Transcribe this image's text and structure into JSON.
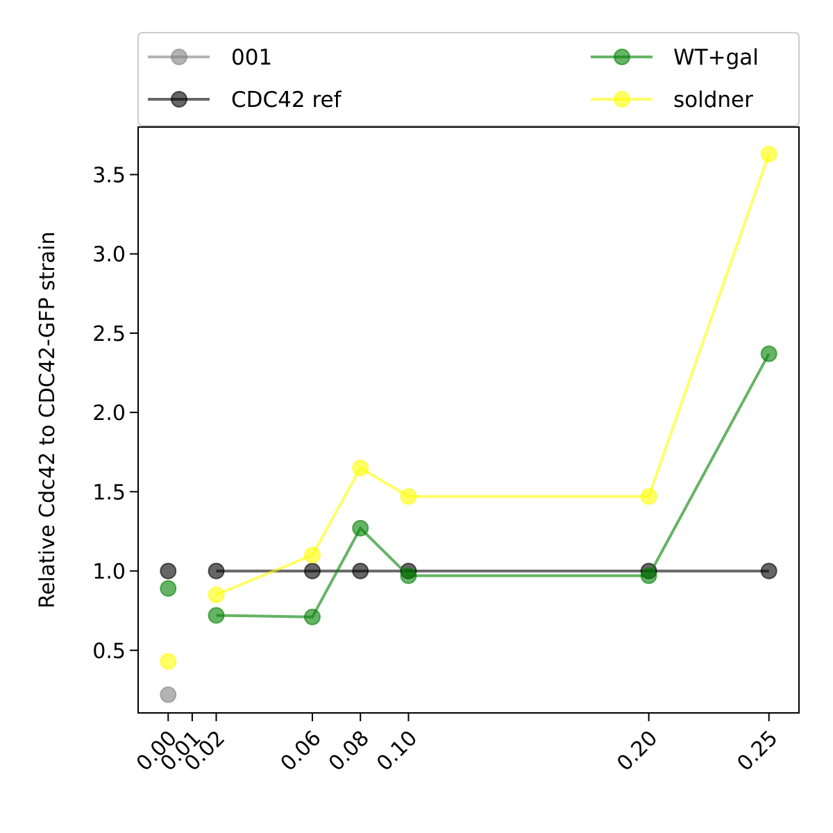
{
  "chart_data": {
    "type": "line",
    "title": "",
    "xlabel": "",
    "ylabel": "Relative Cdc42 to CDC42-GFP strain",
    "xlim": [
      -0.0125,
      0.2625
    ],
    "ylim": [
      0.105,
      3.8
    ],
    "x_ticks": [
      0.0,
      0.01,
      0.02,
      0.06,
      0.08,
      0.1,
      0.2,
      0.25
    ],
    "x_tick_labels": [
      "0.00",
      "0.01",
      "0.02",
      "0.06",
      "0.08",
      "0.10",
      "0.20",
      "0.25"
    ],
    "y_ticks": [
      0.5,
      1.0,
      1.5,
      2.0,
      2.5,
      3.0,
      3.5
    ],
    "y_tick_labels": [
      "0.5",
      "1.0",
      "1.5",
      "2.0",
      "2.5",
      "3.0",
      "3.5"
    ],
    "grid": false,
    "legend_position": "above plot",
    "series": [
      {
        "name": "001",
        "color": "#808080",
        "opacity": 0.6,
        "line": false,
        "points": [
          [
            0.0,
            0.22
          ]
        ]
      },
      {
        "name": "CDC42 ref",
        "color": "#000000",
        "opacity": 0.6,
        "line": true,
        "first_point_isolated": true,
        "points": [
          [
            0.0,
            1.0
          ],
          [
            0.02,
            1.0
          ],
          [
            0.06,
            1.0
          ],
          [
            0.08,
            1.0
          ],
          [
            0.1,
            1.0
          ],
          [
            0.2,
            1.0
          ],
          [
            0.25,
            1.0
          ]
        ]
      },
      {
        "name": "WT+gal",
        "color": "#008000",
        "opacity": 0.6,
        "line": true,
        "first_point_isolated": true,
        "points": [
          [
            0.0,
            0.89
          ],
          [
            0.02,
            0.72
          ],
          [
            0.06,
            0.71
          ],
          [
            0.08,
            1.27
          ],
          [
            0.1,
            0.97
          ],
          [
            0.2,
            0.97
          ],
          [
            0.25,
            2.37
          ]
        ]
      },
      {
        "name": "soldner",
        "color": "#ffff00",
        "opacity": 0.6,
        "line": true,
        "first_point_isolated": true,
        "points": [
          [
            0.0,
            0.43
          ],
          [
            0.02,
            0.85
          ],
          [
            0.06,
            1.1
          ],
          [
            0.08,
            1.65
          ],
          [
            0.1,
            1.47
          ],
          [
            0.2,
            1.47
          ],
          [
            0.25,
            3.63
          ]
        ]
      }
    ]
  }
}
